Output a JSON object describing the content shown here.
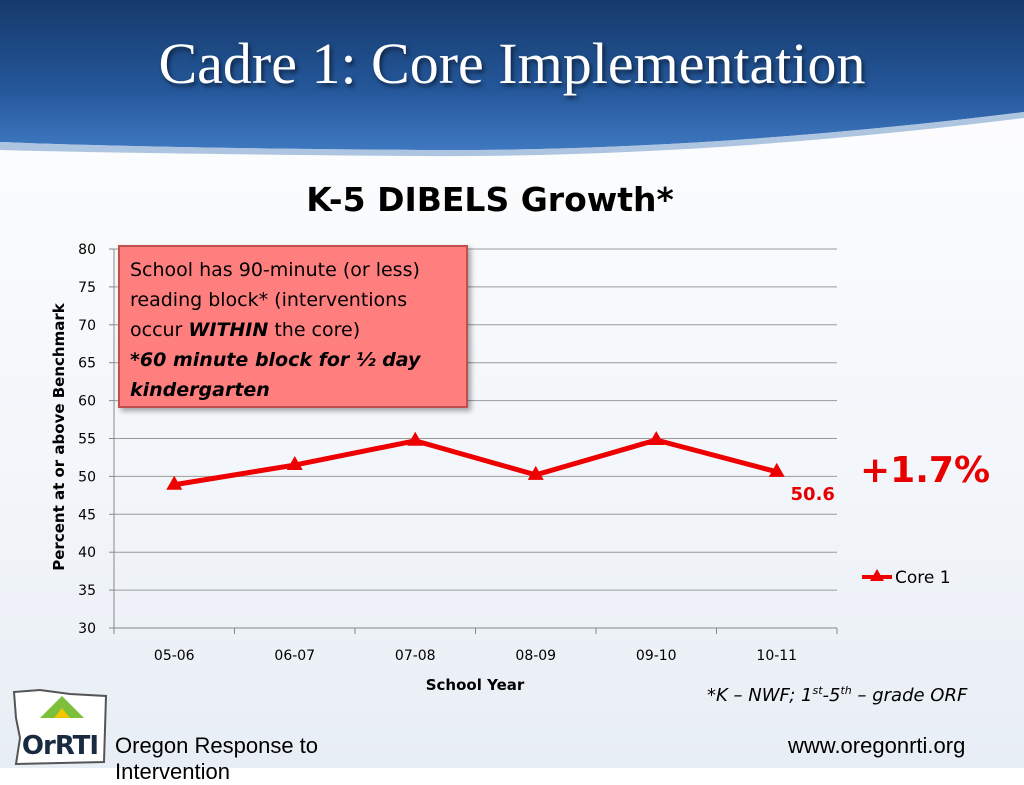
{
  "slide": {
    "title": "Cadre 1: Core Implementation",
    "growth_label": "+1.7%",
    "footnote": {
      "prefix": "*K – NWF; 1",
      "sup1": "st",
      "mid": "-5",
      "sup2": "th",
      "suffix": " – grade ORF"
    },
    "org_name": "Oregon Response to",
    "org_name_cont": "Intervention",
    "url": "www.oregonrti.org",
    "logo_text": "OrRTI",
    "colors": {
      "banner": "#1f4e8c",
      "series": "#ee0000",
      "callout_bg": "#ff7f7f"
    }
  },
  "callout": {
    "line1": "School has 90-minute (or less) reading block* (interventions occur ",
    "emphasis": "WITHIN",
    "line2": " the core)",
    "note": "*60 minute block for ½ day kindergarten"
  },
  "chart_data": {
    "type": "line",
    "title": "K-5 DIBELS Growth*",
    "xlabel": "School Year",
    "ylabel": "Percent at or above Benchmark",
    "categories": [
      "05-06",
      "06-07",
      "07-08",
      "08-09",
      "09-10",
      "10-11"
    ],
    "series": [
      {
        "name": "Core 1",
        "values": [
          48.9,
          51.5,
          54.7,
          50.2,
          54.8,
          50.6
        ],
        "color": "#ee0000"
      }
    ],
    "ylim": [
      30,
      80
    ],
    "yticks": [
      30,
      35,
      40,
      45,
      50,
      55,
      60,
      65,
      70,
      75,
      80
    ],
    "data_labels": [
      {
        "index": 5,
        "text": "50.6"
      }
    ],
    "grid": true,
    "legend": "right"
  }
}
